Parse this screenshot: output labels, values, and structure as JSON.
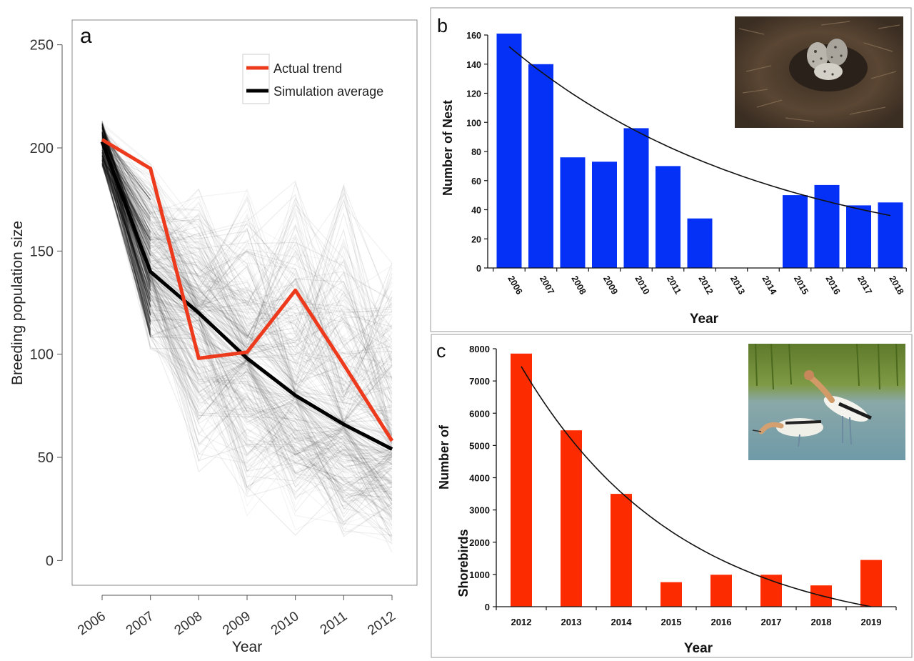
{
  "chart_data": [
    {
      "panel": "a",
      "type": "line",
      "xlabel": "Year",
      "ylabel": "Breeding population size",
      "x": [
        "2006",
        "2007",
        "2008",
        "2009",
        "2010",
        "2011",
        "2012"
      ],
      "ylim": [
        -12,
        262
      ],
      "yticks": [
        "0",
        "50",
        "100",
        "150",
        "200",
        "250"
      ],
      "legend": {
        "placement": "top-right"
      },
      "series": [
        {
          "name": "Actual trend",
          "color": "#ee3a1c",
          "values": [
            204,
            190,
            98,
            101,
            131,
            95,
            58
          ]
        },
        {
          "name": "Simulation average",
          "color": "#000000",
          "values": [
            203,
            140,
            120,
            98,
            80,
            66,
            54
          ]
        }
      ],
      "simulation_envelope": {
        "upper": [
          214,
          199,
          185,
          190,
          194,
          188,
          160
        ],
        "lower": [
          190,
          95,
          40,
          17,
          10,
          5,
          3
        ]
      }
    },
    {
      "panel": "b",
      "type": "bar",
      "xlabel": "Year",
      "ylabel": "Number of Nest",
      "categories": [
        "2006",
        "2007",
        "2008",
        "2009",
        "2010",
        "2011",
        "2012",
        "2013",
        "2014",
        "2015",
        "2016",
        "2017",
        "2018"
      ],
      "values": [
        161,
        140,
        76,
        73,
        96,
        70,
        34,
        0,
        0,
        50,
        57,
        43,
        45
      ],
      "ylim": [
        0,
        170
      ],
      "yticks": [
        "0",
        "20",
        "40",
        "60",
        "80",
        "100",
        "120",
        "140",
        "160"
      ],
      "bar_color": "#0531f7",
      "trend": {
        "type": "exponential",
        "from": 152,
        "to": 36
      }
    },
    {
      "panel": "c",
      "type": "bar",
      "xlabel": "Year",
      "ylabel": [
        "Number of",
        "Shorebirds"
      ],
      "categories": [
        "2012",
        "2013",
        "2014",
        "2015",
        "2016",
        "2017",
        "2018",
        "2019"
      ],
      "values": [
        7850,
        5470,
        3500,
        760,
        990,
        990,
        660,
        1450
      ],
      "ylim": [
        0,
        8000
      ],
      "yticks": [
        "0",
        "1000",
        "2000",
        "3000",
        "4000",
        "5000",
        "6000",
        "7000",
        "8000"
      ],
      "bar_color": "#fd2b00",
      "trend": {
        "type": "exponential",
        "from": 7450,
        "to": 0
      }
    }
  ],
  "labels": {
    "a": "a",
    "b": "b",
    "c": "c"
  }
}
